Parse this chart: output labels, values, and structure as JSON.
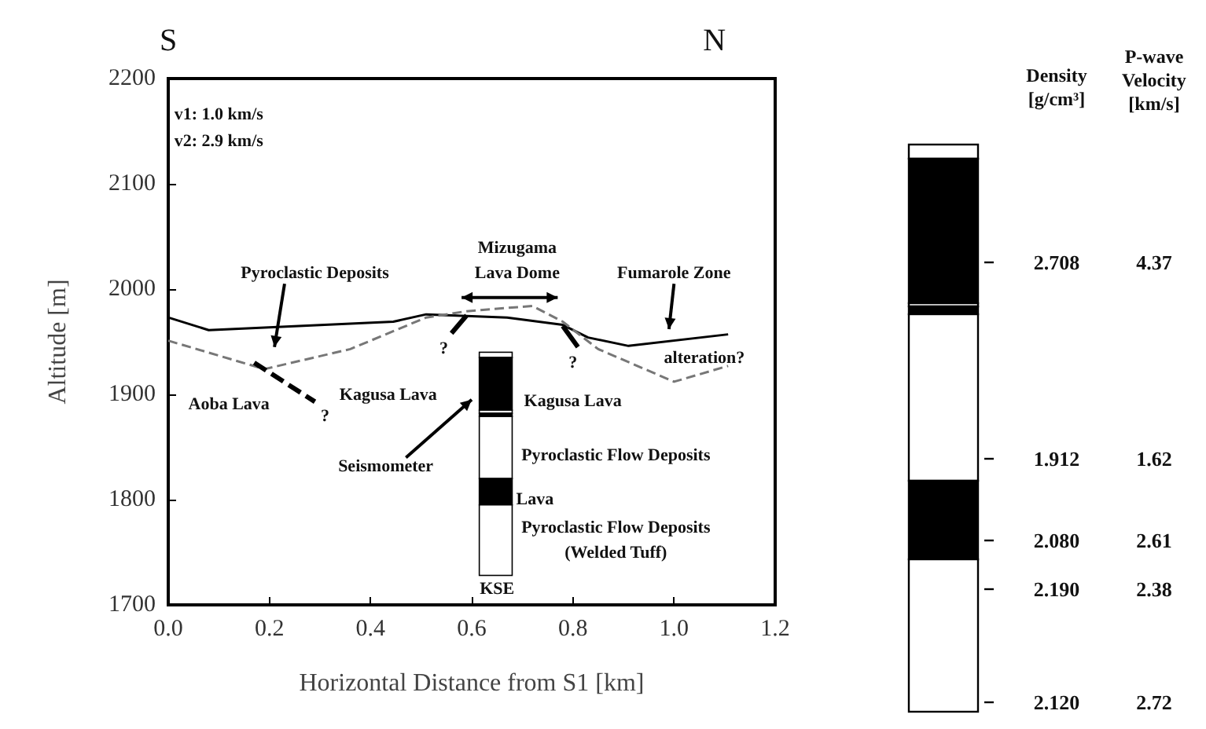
{
  "chart_data": [
    {
      "type": "line",
      "xlabel": "Horizontal Distance from S1 [km]",
      "ylabel": "Altitude [m]",
      "xlim": [
        0,
        1.2
      ],
      "ylim": [
        1700,
        2200
      ],
      "xticks": [
        {
          "value": 0,
          "label": "0.0"
        },
        {
          "value": 0.2,
          "label": "0.2"
        },
        {
          "value": 0.4,
          "label": "0.4"
        },
        {
          "value": 0.6,
          "label": "0.6"
        },
        {
          "value": 0.8,
          "label": "0.8"
        },
        {
          "value": 1,
          "label": "1.0"
        },
        {
          "value": 1.2,
          "label": "1.2"
        }
      ],
      "yticks": [
        1700,
        1800,
        1900,
        2000,
        2100,
        2200
      ],
      "grid": false,
      "marker": "none",
      "series": [
        {
          "color": "#000000",
          "line_style": "solid",
          "x": [
            0,
            0.08,
            0.445,
            0.51,
            0.67,
            0.78,
            0.83,
            0.91,
            1.107
          ],
          "values": [
            1973,
            1961,
            1969,
            1976,
            1973,
            1966,
            1954,
            1946,
            1957
          ]
        },
        {
          "color": "#777777",
          "line_style": "dashed",
          "x": [
            0,
            0.19,
            0.36,
            0.51,
            0.59,
            0.72,
            0.78,
            0.85,
            1.0,
            1.107
          ],
          "values": [
            1951,
            1924,
            1943,
            1973,
            1979,
            1984,
            1969,
            1943,
            1912,
            1927
          ]
        }
      ],
      "annotations": [
        "S",
        "N",
        "v1: 1.0 km/s",
        "v2: 2.9 km/s",
        "Pyroclastic Deposits",
        "Mizugama",
        "Lava Dome",
        "Fumarole Zone",
        "alteration?",
        "Kagusa Lava",
        "Aoba Lava",
        "?",
        "?",
        "?",
        "Kagusa Lava",
        "Pyroclastic Flow Deposits",
        "Lava",
        "Pyroclastic Flow Deposits",
        "(Welded Tuff)",
        "Seismometer",
        "KSE"
      ]
    },
    {
      "type": "other",
      "annotations": [
        "Density [g/cm³]",
        "P-wave Velocity [km/s]",
        "2.708",
        "4.37",
        "1.912",
        "1.62",
        "2.080",
        "2.61",
        "2.190",
        "2.38",
        "2.120",
        "2.72"
      ]
    }
  ]
}
